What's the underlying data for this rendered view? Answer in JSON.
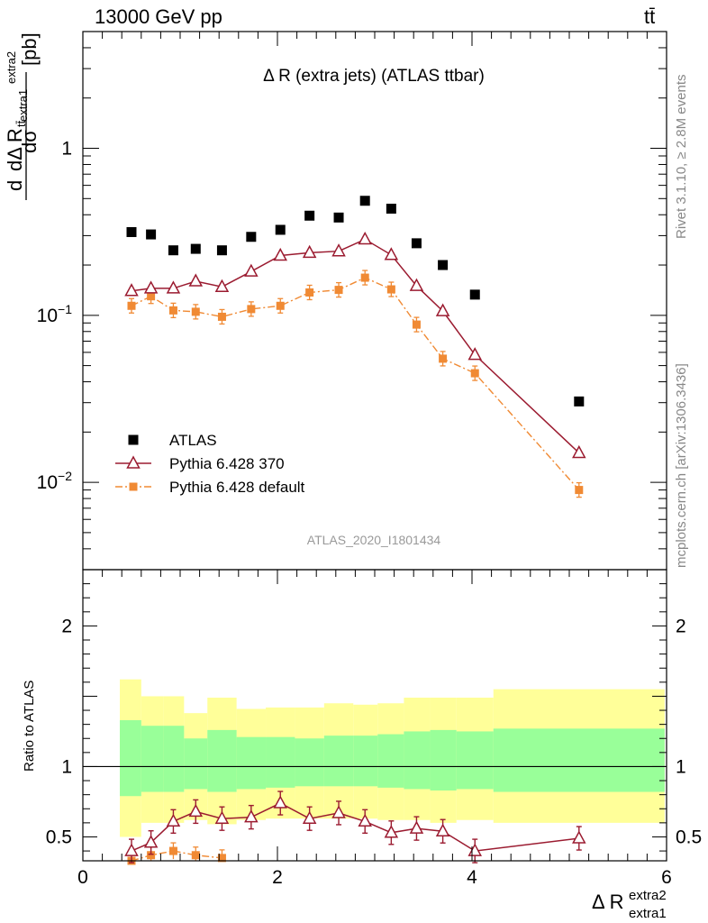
{
  "header": {
    "energy_label": "13000 GeV pp",
    "process_label": "tt̄"
  },
  "side_text": {
    "rivet": "Rivet 3.1.10, ≥ 2.8M events",
    "mcplots": "mcplots.cern.ch [arXiv:1306.3436]"
  },
  "chart_data": [
    {
      "type": "scatter",
      "title": "Δ R (extra jets) (ATLAS ttbar)",
      "analysis_id": "ATLAS_2020_I1801434",
      "ylabel": "dσ^tt̄ / dΔ R^extra2_extra1 [pb]",
      "yscale": "log",
      "xlim": [
        0,
        6
      ],
      "ylim": [
        0.003,
        5
      ],
      "y_tick_labels": [
        "1",
        "10⁻¹",
        "10⁻²"
      ],
      "x": [
        0.5,
        0.7,
        0.93,
        1.16,
        1.43,
        1.73,
        2.03,
        2.33,
        2.63,
        2.9,
        3.17,
        3.43,
        3.7,
        4.03,
        5.1
      ],
      "series": [
        {
          "name": "ATLAS",
          "marker": "square",
          "color": "#000000",
          "values": [
            0.315,
            0.305,
            0.245,
            0.25,
            0.245,
            0.295,
            0.325,
            0.395,
            0.385,
            0.485,
            0.435,
            0.27,
            0.2,
            0.133,
            0.0305
          ]
        },
        {
          "name": "Pythia 6.428 370",
          "marker": "open-triangle",
          "line": "solid",
          "color": "#9b1b30",
          "values": [
            0.14,
            0.145,
            0.145,
            0.16,
            0.148,
            0.183,
            0.228,
            0.237,
            0.242,
            0.285,
            0.23,
            0.15,
            0.106,
            0.058,
            0.015
          ]
        },
        {
          "name": "Pythia 6.428 default",
          "marker": "filled-square-small",
          "line": "dash-dot",
          "color": "#f08a34",
          "values": [
            0.114,
            0.13,
            0.107,
            0.105,
            0.098,
            0.109,
            0.114,
            0.137,
            0.142,
            0.168,
            0.143,
            0.088,
            0.055,
            0.045,
            0.009
          ]
        }
      ]
    },
    {
      "type": "scatter",
      "ylabel": "Ratio to ATLAS",
      "xlabel": "Δ R^extra2_extra1",
      "xlim": [
        0,
        6
      ],
      "ylim": [
        0.33,
        2.4
      ],
      "x_tick_labels": [
        "0",
        "2",
        "4",
        "6"
      ],
      "y_tick_labels": [
        "0.5",
        "1",
        "2"
      ],
      "bins": [
        {
          "lo": 0.38,
          "hi": 0.6
        },
        {
          "lo": 0.6,
          "hi": 0.83
        },
        {
          "lo": 0.83,
          "hi": 1.04
        },
        {
          "lo": 1.04,
          "hi": 1.28
        },
        {
          "lo": 1.28,
          "hi": 1.58
        },
        {
          "lo": 1.58,
          "hi": 1.88
        },
        {
          "lo": 1.88,
          "hi": 2.18
        },
        {
          "lo": 2.18,
          "hi": 2.48
        },
        {
          "lo": 2.48,
          "hi": 2.78
        },
        {
          "lo": 2.78,
          "hi": 3.03
        },
        {
          "lo": 3.03,
          "hi": 3.3
        },
        {
          "lo": 3.3,
          "hi": 3.57
        },
        {
          "lo": 3.57,
          "hi": 3.84
        },
        {
          "lo": 3.84,
          "hi": 4.22
        },
        {
          "lo": 4.22,
          "hi": 5.98
        }
      ],
      "total_band": [
        [
          0.5,
          1.62
        ],
        [
          0.6,
          1.5
        ],
        [
          0.6,
          1.5
        ],
        [
          0.62,
          1.38
        ],
        [
          0.59,
          1.49
        ],
        [
          0.62,
          1.41
        ],
        [
          0.63,
          1.42
        ],
        [
          0.63,
          1.42
        ],
        [
          0.63,
          1.45
        ],
        [
          0.63,
          1.44
        ],
        [
          0.62,
          1.45
        ],
        [
          0.62,
          1.49
        ],
        [
          0.6,
          1.49
        ],
        [
          0.62,
          1.49
        ],
        [
          0.6,
          1.55
        ]
      ],
      "stat_band": [
        [
          0.79,
          1.33
        ],
        [
          0.82,
          1.29
        ],
        [
          0.82,
          1.29
        ],
        [
          0.84,
          1.2
        ],
        [
          0.82,
          1.26
        ],
        [
          0.84,
          1.21
        ],
        [
          0.85,
          1.21
        ],
        [
          0.86,
          1.2
        ],
        [
          0.86,
          1.22
        ],
        [
          0.86,
          1.22
        ],
        [
          0.85,
          1.23
        ],
        [
          0.84,
          1.25
        ],
        [
          0.83,
          1.26
        ],
        [
          0.84,
          1.25
        ],
        [
          0.82,
          1.27
        ]
      ],
      "band_colors": {
        "total": "#ffff99",
        "stat": "#99ff99"
      },
      "series": [
        {
          "name": "Pythia 6.428 370",
          "color": "#9b1b30",
          "values": [
            0.4,
            0.46,
            0.61,
            0.68,
            0.63,
            0.64,
            0.74,
            0.63,
            0.67,
            0.61,
            0.53,
            0.56,
            0.54,
            0.4,
            0.49
          ]
        },
        {
          "name": "Pythia 6.428 default",
          "color": "#f08a34",
          "values": [
            0.33,
            0.37,
            0.4,
            0.37,
            0.35,
            null,
            null,
            null,
            null,
            null,
            null,
            null,
            null,
            null,
            null
          ]
        }
      ]
    }
  ]
}
